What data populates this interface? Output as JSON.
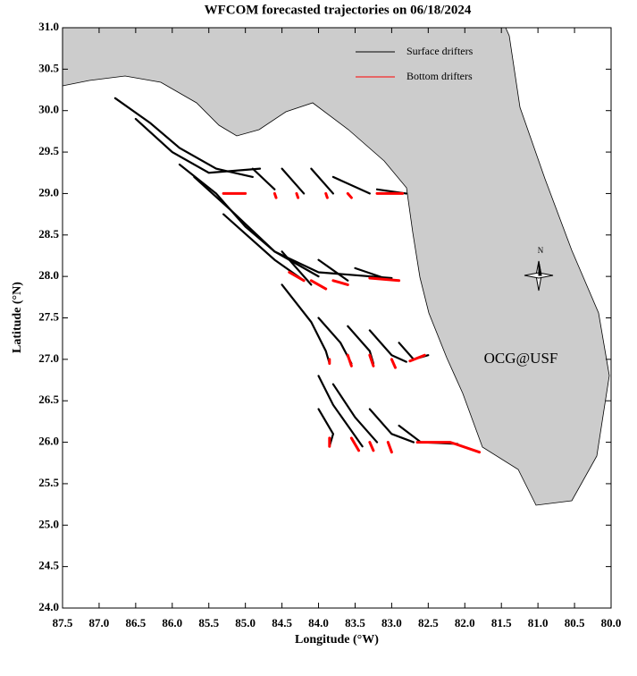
{
  "chart_data": {
    "type": "trajectory",
    "title": "WFCOM forecasted trajectories on 06/18/2024",
    "x_label": "Longitude (°W)",
    "y_label": "Latitude (°N)",
    "annotation": "OCG@USF",
    "annotation_color": "#ff0000",
    "compass_label": "N",
    "land_color": "#cccccc",
    "legend_position": "upper right",
    "xlim": [
      87.5,
      80.0
    ],
    "xticks": [
      87.5,
      {
        "value": 87,
        "label": "87.0"
      },
      86.5,
      {
        "value": 86,
        "label": "86.0"
      },
      85.5,
      {
        "value": 85,
        "label": "85.0"
      },
      84.5,
      {
        "value": 84,
        "label": "84.0"
      },
      83.5,
      {
        "value": 83,
        "label": "83.0"
      },
      82.5,
      {
        "value": 82,
        "label": "82.0"
      },
      81.5,
      {
        "value": 81,
        "label": "81.0"
      },
      80.5,
      {
        "value": 80,
        "label": "80.0"
      }
    ],
    "ylim": [
      24.0,
      31.0
    ],
    "yticks": [
      {
        "value": 24,
        "label": "24.0"
      },
      24.5,
      {
        "value": 25,
        "label": "25.0"
      },
      25.5,
      {
        "value": 26,
        "label": "26.0"
      },
      26.5,
      {
        "value": 27,
        "label": "27.0"
      },
      27.5,
      {
        "value": 28,
        "label": "28.0"
      },
      28.5,
      {
        "value": 29,
        "label": "29.0"
      },
      29.5,
      {
        "value": 30,
        "label": "30.0"
      },
      30.5,
      {
        "value": 31,
        "label": "31.0"
      }
    ],
    "series": [
      {
        "name": "Surface drifters",
        "color": "#000000",
        "tracks": [
          {
            "x": [
              86.78,
              86.3,
              85.9,
              85.4,
              84.9
            ],
            "values": [
              30.15,
              29.85,
              29.55,
              29.3,
              29.2
            ]
          },
          {
            "x": [
              86.5,
              86.0,
              85.5,
              84.8
            ],
            "values": [
              29.9,
              29.5,
              29.25,
              29.3
            ]
          },
          {
            "x": [
              84.9,
              84.6
            ],
            "values": [
              29.3,
              29.05
            ]
          },
          {
            "x": [
              84.5,
              84.2
            ],
            "values": [
              29.3,
              29.0
            ]
          },
          {
            "x": [
              84.1,
              83.8
            ],
            "values": [
              29.3,
              29.0
            ]
          },
          {
            "x": [
              83.8,
              83.3
            ],
            "values": [
              29.2,
              29.0
            ]
          },
          {
            "x": [
              83.2,
              82.8
            ],
            "values": [
              29.05,
              29.0
            ]
          },
          {
            "x": [
              85.9,
              85.4,
              85.0,
              84.6,
              84.0,
              83.0
            ],
            "values": [
              29.35,
              29.0,
              28.6,
              28.3,
              28.05,
              27.98
            ]
          },
          {
            "x": [
              85.7,
              85.2,
              84.6,
              84.0
            ],
            "values": [
              29.2,
              28.8,
              28.3,
              28.0
            ]
          },
          {
            "x": [
              85.3,
              84.6,
              84.2
            ],
            "values": [
              28.75,
              28.2,
              27.95
            ]
          },
          {
            "x": [
              84.5,
              84.1
            ],
            "values": [
              28.3,
              27.9
            ]
          },
          {
            "x": [
              84.0,
              83.6
            ],
            "values": [
              28.2,
              27.95
            ]
          },
          {
            "x": [
              83.5,
              83.1
            ],
            "values": [
              28.1,
              27.98
            ]
          },
          {
            "x": [
              84.5,
              84.1,
              83.9,
              83.85
            ],
            "values": [
              27.9,
              27.45,
              27.1,
              26.95
            ]
          },
          {
            "x": [
              84.0,
              83.7,
              83.55
            ],
            "values": [
              27.5,
              27.2,
              26.95
            ]
          },
          {
            "x": [
              83.6,
              83.3,
              83.25
            ],
            "values": [
              27.4,
              27.1,
              26.95
            ]
          },
          {
            "x": [
              83.3,
              83.0,
              82.8
            ],
            "values": [
              27.35,
              27.05,
              26.97
            ]
          },
          {
            "x": [
              82.9,
              82.7,
              82.5
            ],
            "values": [
              27.2,
              27.0,
              27.05
            ]
          },
          {
            "x": [
              84.0,
              83.8,
              83.6,
              83.4
            ],
            "values": [
              26.8,
              26.45,
              26.2,
              25.95
            ]
          },
          {
            "x": [
              83.8,
              83.5,
              83.2
            ],
            "values": [
              26.7,
              26.3,
              26.0
            ]
          },
          {
            "x": [
              84.0,
              83.8,
              83.85
            ],
            "values": [
              26.4,
              26.1,
              25.95
            ]
          },
          {
            "x": [
              83.3,
              83.0,
              82.7
            ],
            "values": [
              26.4,
              26.1,
              26.0
            ]
          },
          {
            "x": [
              82.9,
              82.6,
              82.1
            ],
            "values": [
              26.2,
              26.0,
              25.98
            ]
          }
        ]
      },
      {
        "name": "Bottom drifters",
        "color": "#ff0000",
        "tracks": [
          {
            "x": [
              85.3,
              85.0
            ],
            "values": [
              29.0,
              29.0
            ]
          },
          {
            "x": [
              84.6,
              84.58
            ],
            "values": [
              29.0,
              28.95
            ]
          },
          {
            "x": [
              84.3,
              84.28
            ],
            "values": [
              29.0,
              28.95
            ]
          },
          {
            "x": [
              83.9,
              83.88
            ],
            "values": [
              29.0,
              28.95
            ]
          },
          {
            "x": [
              83.6,
              83.55
            ],
            "values": [
              29.0,
              28.95
            ]
          },
          {
            "x": [
              83.2,
              82.85
            ],
            "values": [
              29.0,
              29.0
            ]
          },
          {
            "x": [
              84.4,
              84.2
            ],
            "values": [
              28.05,
              27.95
            ]
          },
          {
            "x": [
              84.1,
              83.9
            ],
            "values": [
              27.95,
              27.85
            ]
          },
          {
            "x": [
              83.8,
              83.6
            ],
            "values": [
              27.95,
              27.9
            ]
          },
          {
            "x": [
              83.3,
              82.9
            ],
            "values": [
              27.98,
              27.95
            ]
          },
          {
            "x": [
              83.85,
              83.85
            ],
            "values": [
              27.0,
              26.95
            ]
          },
          {
            "x": [
              83.6,
              83.55
            ],
            "values": [
              27.05,
              26.92
            ]
          },
          {
            "x": [
              83.3,
              83.25
            ],
            "values": [
              27.05,
              26.92
            ]
          },
          {
            "x": [
              83.0,
              82.95
            ],
            "values": [
              27.0,
              26.9
            ]
          },
          {
            "x": [
              82.75,
              82.55
            ],
            "values": [
              26.98,
              27.05
            ]
          },
          {
            "x": [
              83.85,
              83.85
            ],
            "values": [
              26.05,
              25.95
            ]
          },
          {
            "x": [
              83.55,
              83.45
            ],
            "values": [
              26.05,
              25.9
            ]
          },
          {
            "x": [
              83.3,
              83.25
            ],
            "values": [
              26.0,
              25.9
            ]
          },
          {
            "x": [
              83.05,
              83.0
            ],
            "values": [
              26.0,
              25.88
            ]
          },
          {
            "x": [
              82.65,
              82.2,
              81.8
            ],
            "values": [
              26.0,
              26.0,
              25.88
            ]
          }
        ]
      }
    ]
  }
}
